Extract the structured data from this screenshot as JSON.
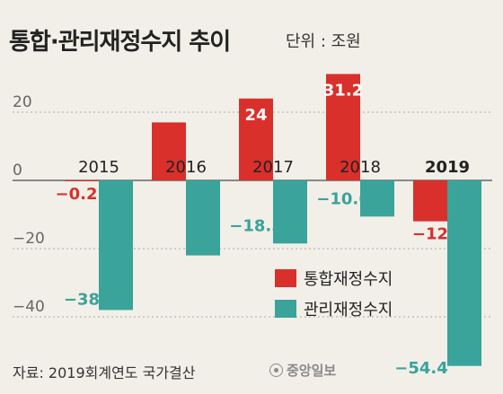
{
  "title": "통합·관리재정수지 추이",
  "unit": "단위 : 조원",
  "source": "자료: 2019회계연도 국가결산",
  "logo": "중앙일보",
  "colors": {
    "red": "#d9302b",
    "teal": "#3aa39a",
    "axis": "#666666",
    "grid": "#a8a8a8"
  },
  "chart_data": {
    "type": "bar",
    "categories": [
      "2015",
      "2016",
      "2017",
      "2018",
      "2019"
    ],
    "series": [
      {
        "name": "통합재정수지",
        "color": "#d9302b",
        "values": [
          -0.2,
          17,
          24,
          31.2,
          -12
        ],
        "labels": [
          "-0.2",
          "",
          "24",
          "31.2",
          "-12"
        ]
      },
      {
        "name": "관리재정수지",
        "color": "#3aa39a",
        "values": [
          -38,
          -22,
          -18.5,
          -10.6,
          -54.4
        ],
        "labels": [
          "-38",
          "",
          "-18.5",
          "-10.6",
          "-54.4"
        ]
      }
    ],
    "yticks": [
      20,
      0,
      -20,
      -40
    ],
    "ylim": [
      -57,
      36
    ],
    "grid": true
  }
}
